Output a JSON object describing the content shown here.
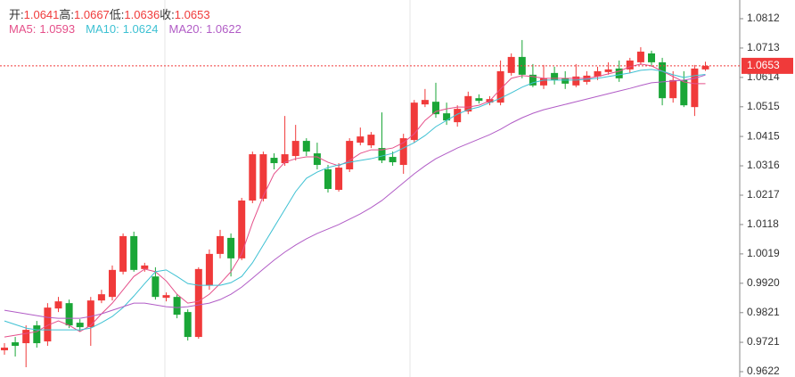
{
  "chart_data": {
    "type": "candlestick",
    "header": [
      {
        "label": "开:",
        "field": "open"
      },
      {
        "label": "高:",
        "field": "high"
      },
      {
        "label": "低:",
        "field": "low"
      },
      {
        "label": "收:",
        "field": "close"
      }
    ],
    "ma_separator": ":",
    "up_color": "#f03a3a",
    "down_color": "#1aa637",
    "open": [
      0.9694,
      0.9721,
      0.9718,
      0.9778,
      0.9724,
      0.9835,
      0.9853,
      0.9787,
      0.9772,
      0.9862,
      0.9874,
      0.9959,
      1.0079,
      0.9968,
      0.9943,
      0.9871,
      0.9874,
      0.9823,
      0.9739,
      0.9913,
      1.0019,
      1.0073,
      1.0004,
      1.0199,
      1.0205,
      1.0343,
      1.0325,
      1.0349,
      1.04,
      1.0358,
      1.0304,
      1.0235,
      1.0304,
      1.0394,
      1.0385,
      1.0376,
      1.0346,
      1.0319,
      1.0403,
      1.0523,
      1.0532,
      1.0493,
      1.0463,
      1.0499,
      1.0544,
      1.0529,
      1.0529,
      1.0629,
      1.0683,
      1.0623,
      1.0587,
      1.0629,
      1.0611,
      1.0587,
      1.0599,
      1.0617,
      1.0632,
      1.0644,
      1.0641,
      1.0665,
      1.0695,
      1.0665,
      1.0544,
      1.0605,
      1.0514,
      1.0641
    ],
    "high": [
      0.9718,
      0.9739,
      0.9778,
      0.9793,
      0.9853,
      0.9874,
      0.9865,
      0.9799,
      0.9874,
      0.9898,
      0.998,
      1.0088,
      1.0094,
      0.9989,
      0.9974,
      0.9889,
      0.9883,
      0.9832,
      0.9974,
      1.0034,
      1.01,
      1.0088,
      1.0208,
      1.0364,
      1.0364,
      1.0358,
      1.0484,
      1.0454,
      1.0409,
      1.0394,
      1.0319,
      1.0325,
      1.0409,
      1.0445,
      1.043,
      1.0496,
      1.0364,
      1.0424,
      1.0538,
      1.0575,
      1.0596,
      1.0529,
      1.052,
      1.0566,
      1.0557,
      1.0551,
      1.0671,
      1.0695,
      1.074,
      1.0659,
      1.0656,
      1.065,
      1.0635,
      1.0659,
      1.0635,
      1.065,
      1.0665,
      1.0671,
      1.068,
      1.0716,
      1.0704,
      1.068,
      1.0635,
      1.0635,
      1.0656,
      1.0667
    ],
    "low": [
      0.9679,
      0.9673,
      0.9637,
      0.9703,
      0.9709,
      0.9823,
      0.9769,
      0.9757,
      0.9709,
      0.9853,
      0.9862,
      0.995,
      0.9959,
      0.9959,
      0.9865,
      0.9859,
      0.9802,
      0.9727,
      0.9733,
      0.9898,
      1.0004,
      0.9943,
      0.9998,
      1.019,
      1.0196,
      1.0304,
      1.0316,
      1.0334,
      1.0349,
      1.0304,
      1.0226,
      1.0229,
      1.0295,
      1.0385,
      1.0376,
      1.0325,
      1.0316,
      1.0289,
      1.0394,
      1.0514,
      1.0478,
      1.0454,
      1.0448,
      1.049,
      1.0526,
      1.052,
      1.052,
      1.062,
      1.0611,
      1.0581,
      1.0575,
      1.059,
      1.0575,
      1.0581,
      1.059,
      1.0605,
      1.0623,
      1.0599,
      1.0629,
      1.0656,
      1.065,
      1.052,
      1.0529,
      1.0514,
      1.0484,
      1.0636
    ],
    "close": [
      0.9703,
      0.9709,
      0.9763,
      0.9718,
      0.9838,
      0.9859,
      0.9778,
      0.9772,
      0.9862,
      0.9883,
      0.9965,
      1.0079,
      0.9965,
      0.998,
      0.9874,
      0.988,
      0.9814,
      0.9739,
      0.9968,
      1.0019,
      1.0079,
      1.0004,
      1.0199,
      1.0355,
      1.0355,
      1.0325,
      1.0355,
      1.04,
      1.0364,
      1.0319,
      1.0238,
      1.031,
      1.04,
      1.0415,
      1.0421,
      1.0334,
      1.0328,
      1.0409,
      1.0529,
      1.0538,
      1.049,
      1.0469,
      1.0508,
      1.0551,
      1.0535,
      1.0541,
      1.0635,
      1.0683,
      1.0623,
      1.0587,
      1.0611,
      1.0605,
      1.0593,
      1.0617,
      1.062,
      1.0635,
      1.0641,
      1.0611,
      1.0671,
      1.0701,
      1.0665,
      1.0544,
      1.0605,
      1.052,
      1.0644,
      1.0653
    ],
    "ma_series": [
      {
        "name": "MA5",
        "color": "#e5508a",
        "values": [
          0.9739,
          0.9745,
          0.9751,
          0.9757,
          0.9778,
          0.9793,
          0.9778,
          0.9757,
          0.9778,
          0.9817,
          0.9853,
          0.9898,
          0.9943,
          0.9968,
          0.9959,
          0.9928,
          0.9883,
          0.9853,
          0.9859,
          0.9883,
          0.9919,
          0.9959,
          1.0019,
          1.0124,
          1.0214,
          1.0289,
          1.0328,
          1.034,
          1.0346,
          1.0346,
          1.0328,
          1.0316,
          1.0334,
          1.0358,
          1.037,
          1.037,
          1.0376,
          1.0394,
          1.0424,
          1.0469,
          1.0499,
          1.0508,
          1.0514,
          1.0514,
          1.052,
          1.0535,
          1.0575,
          1.0611,
          1.062,
          1.0617,
          1.0611,
          1.0611,
          1.0611,
          1.0611,
          1.0611,
          1.0617,
          1.0626,
          1.0635,
          1.065,
          1.0659,
          1.0653,
          1.0635,
          1.0617,
          1.0599,
          1.0593,
          1.0593
        ]
      },
      {
        "name": "MA10",
        "color": "#3ec1d3",
        "values": [
          0.9793,
          0.9781,
          0.9769,
          0.9763,
          0.9763,
          0.9763,
          0.9763,
          0.9763,
          0.9769,
          0.9787,
          0.9808,
          0.9838,
          0.9877,
          0.9919,
          0.9959,
          0.9965,
          0.9943,
          0.9919,
          0.9913,
          0.9913,
          0.9913,
          0.9922,
          0.9943,
          0.9989,
          1.0049,
          1.0109,
          1.0169,
          1.0229,
          1.0274,
          1.0295,
          1.031,
          1.0319,
          1.0328,
          1.0334,
          1.034,
          1.0349,
          1.0358,
          1.0376,
          1.0394,
          1.0418,
          1.0448,
          1.0469,
          1.049,
          1.0505,
          1.0514,
          1.0529,
          1.0544,
          1.0562,
          1.0581,
          1.0596,
          1.0605,
          1.0605,
          1.0605,
          1.0605,
          1.0608,
          1.0611,
          1.0617,
          1.0623,
          1.0629,
          1.0638,
          1.0641,
          1.0635,
          1.0623,
          1.0614,
          1.062,
          1.0624
        ]
      },
      {
        "name": "MA20",
        "color": "#b15cc6",
        "values": [
          0.9829,
          0.9823,
          0.9817,
          0.9811,
          0.9805,
          0.9802,
          0.9802,
          0.9802,
          0.9808,
          0.9817,
          0.9829,
          0.9841,
          0.9853,
          0.9853,
          0.9847,
          0.9841,
          0.9838,
          0.9841,
          0.9847,
          0.9853,
          0.9865,
          0.9883,
          0.9907,
          0.9937,
          0.9968,
          0.9998,
          1.0025,
          1.0049,
          1.007,
          1.0088,
          1.0103,
          1.0118,
          1.0136,
          1.0154,
          1.0175,
          1.0199,
          1.0229,
          1.0259,
          1.0289,
          1.0316,
          1.034,
          1.0358,
          1.0376,
          1.0391,
          1.0406,
          1.0421,
          1.0439,
          1.046,
          1.0478,
          1.0493,
          1.0505,
          1.0514,
          1.0523,
          1.0532,
          1.0541,
          1.055,
          1.0559,
          1.0568,
          1.0577,
          1.0587,
          1.0596,
          1.0599,
          1.0602,
          1.0605,
          1.0611,
          1.0622
        ]
      }
    ],
    "ylim": [
      0.9604,
      1.0875
    ],
    "yticks": [
      1.0812,
      1.0713,
      1.0614,
      1.0515,
      1.0415,
      1.0316,
      1.0217,
      1.0118,
      1.0019,
      {
        "value": 0.992,
        "label": "0.9920"
      },
      0.9821,
      0.9721,
      0.9622
    ],
    "last_price_line": true
  }
}
